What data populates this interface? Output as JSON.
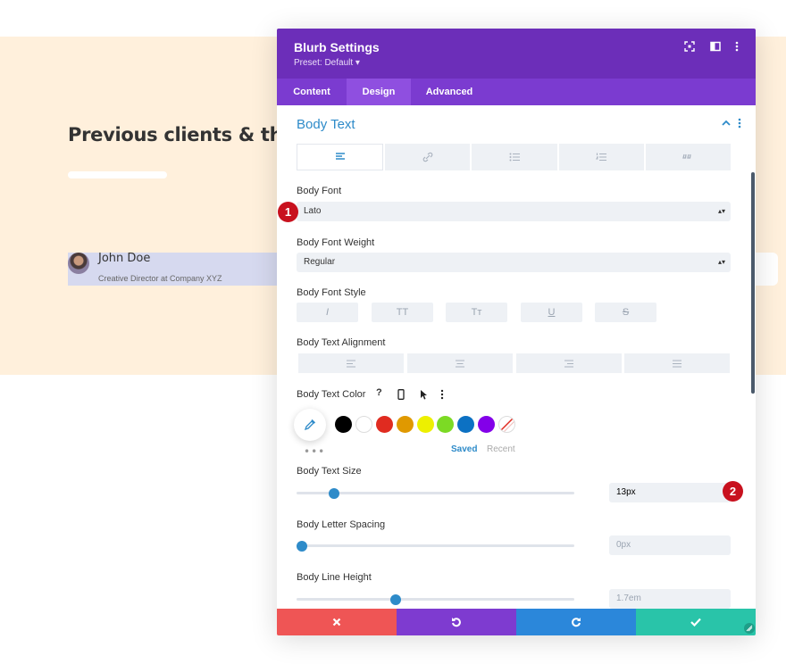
{
  "background": {
    "heading": "Previous clients & the",
    "client": {
      "name": "John Doe",
      "role": "Creative Director at Company XYZ"
    }
  },
  "modal": {
    "title": "Blurb Settings",
    "preset": "Preset: Default ▾",
    "header_icons": [
      "expand-icon",
      "split-view-icon",
      "more-vertical-icon"
    ],
    "tabs": [
      {
        "label": "Content",
        "active": false
      },
      {
        "label": "Design",
        "active": true
      },
      {
        "label": "Advanced",
        "active": false
      }
    ],
    "section": {
      "title": "Body Text"
    },
    "text_tabs": [
      "paragraph-icon",
      "link-icon",
      "unordered-list-icon",
      "ordered-list-icon",
      "quote-icon"
    ],
    "body_font": {
      "label": "Body Font",
      "value": "Lato",
      "badge": "1"
    },
    "body_font_weight": {
      "label": "Body Font Weight",
      "value": "Regular"
    },
    "body_font_style": {
      "label": "Body Font Style",
      "options": [
        "I",
        "TT",
        "Tт",
        "U",
        "S"
      ]
    },
    "body_text_alignment": {
      "label": "Body Text Alignment"
    },
    "body_text_color": {
      "label": "Body Text Color",
      "help": "?",
      "swatches": [
        "#000000",
        "#ffffff",
        "#e02b20",
        "#e09900",
        "#edf000",
        "#7cda24",
        "#0c71c3",
        "#8300e9"
      ],
      "saved_label": "Saved",
      "recent_label": "Recent",
      "more": "•••"
    },
    "body_text_size": {
      "label": "Body Text Size",
      "value": "13px",
      "slider_fraction": 0.13,
      "badge": "2"
    },
    "body_letter_spacing": {
      "label": "Body Letter Spacing",
      "value": "0px",
      "slider_fraction": 0.0
    },
    "body_line_height": {
      "label": "Body Line Height",
      "value": "1.7em",
      "slider_fraction": 0.35
    },
    "footer": {
      "cancel_color": "#ef5555",
      "undo_color": "#7e3bd0",
      "redo_color": "#2b87da",
      "save_color": "#29c4a9"
    }
  }
}
